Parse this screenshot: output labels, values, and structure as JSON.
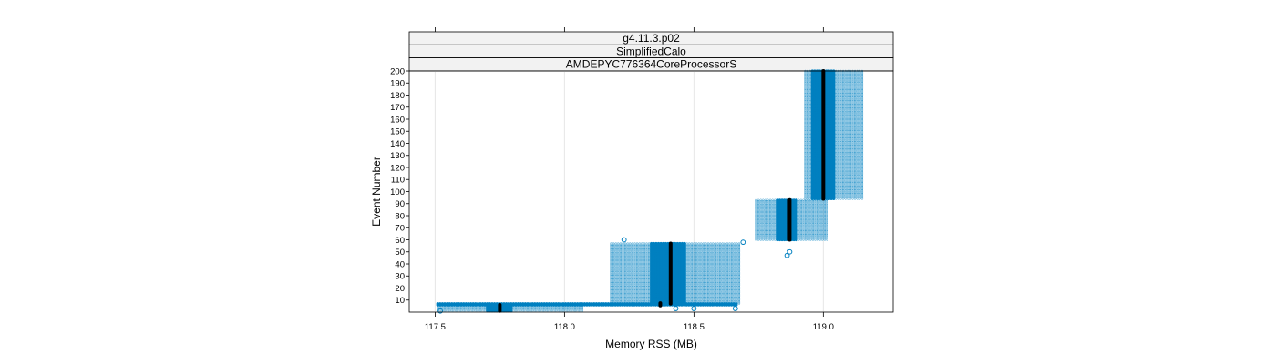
{
  "chart_data": {
    "type": "scatter",
    "strips": [
      "g4.11.3.p02",
      "SimplifiedCalo",
      "AMDEPYC776364CoreProcessorS"
    ],
    "xlabel": "Memory RSS (MB)",
    "ylabel": "Event Number",
    "xlim": [
      117.4,
      119.27
    ],
    "ylim": [
      0,
      200
    ],
    "xticks": [
      "117.5",
      "118.0",
      "118.5",
      "119.0"
    ],
    "yticks": [
      "10",
      "20",
      "30",
      "40",
      "50",
      "60",
      "70",
      "80",
      "90",
      "100",
      "110",
      "120",
      "130",
      "140",
      "150",
      "160",
      "170",
      "180",
      "190",
      "200"
    ],
    "grid": true,
    "colors": {
      "points": "#0080c0",
      "median": "#000000",
      "strip_bg": "#f2f2f2",
      "grid": "#e6e6e6"
    },
    "groups": [
      {
        "x_min": 117.51,
        "x_max": 118.07,
        "y_min": 1,
        "y_max": 6,
        "dense_min": 117.7,
        "dense_max": 117.8,
        "median_x": 117.75,
        "median_y_min": 1,
        "median_y_max": 6
      },
      {
        "x_min": 117.51,
        "x_max": 118.67,
        "y_min": 6,
        "y_max": 7,
        "dense_min": 117.51,
        "dense_max": 118.67,
        "median_x": 118.37,
        "median_y_min": 5.5,
        "median_y_max": 7.5
      },
      {
        "x_min": 118.18,
        "x_max": 118.68,
        "y_min": 7,
        "y_max": 57,
        "dense_min": 118.33,
        "dense_max": 118.47,
        "median_x": 118.41,
        "median_y_min": 7,
        "median_y_max": 57
      },
      {
        "x_min": 118.74,
        "x_max": 119.02,
        "y_min": 60,
        "y_max": 93,
        "dense_min": 118.82,
        "dense_max": 118.9,
        "median_x": 118.87,
        "median_y_min": 60,
        "median_y_max": 93
      },
      {
        "x_min": 118.93,
        "x_max": 119.15,
        "y_min": 94,
        "y_max": 200,
        "dense_min": 118.95,
        "dense_max": 119.04,
        "median_x": 119.0,
        "median_y_min": 94,
        "median_y_max": 200
      }
    ],
    "outliers": [
      {
        "x": 117.52,
        "y": 1
      },
      {
        "x": 118.23,
        "y": 60
      },
      {
        "x": 118.43,
        "y": 3
      },
      {
        "x": 118.5,
        "y": 3
      },
      {
        "x": 118.66,
        "y": 3
      },
      {
        "x": 118.69,
        "y": 58
      },
      {
        "x": 118.86,
        "y": 47
      },
      {
        "x": 118.87,
        "y": 50
      }
    ]
  }
}
